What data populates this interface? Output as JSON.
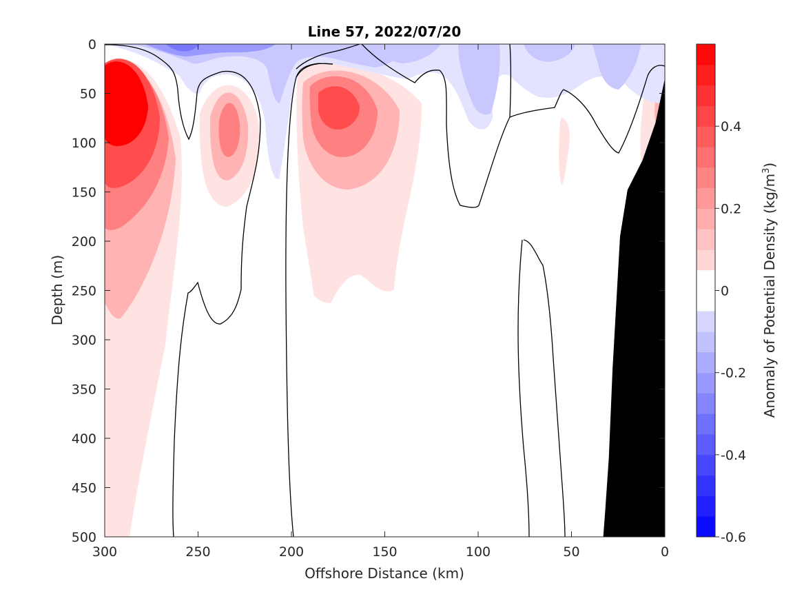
{
  "chart_data": {
    "type": "contour",
    "title": "Line 57, 2022/07/20",
    "xlabel": "Offshore Distance (km)",
    "ylabel": "Depth (m)",
    "colorbar_label": "Anomaly of Potential Density (kg/m",
    "colorbar_label_sup": "3",
    "colorbar_label_end": ")",
    "xlim": [
      300,
      0
    ],
    "ylim": [
      0,
      500
    ],
    "x_reversed": true,
    "y_reversed": true,
    "x_ticks": [
      "300",
      "250",
      "200",
      "150",
      "100",
      "50",
      "0"
    ],
    "y_ticks": [
      "0",
      "50",
      "100",
      "150",
      "200",
      "250",
      "300",
      "350",
      "400",
      "450",
      "500"
    ],
    "clim": [
      -0.6,
      0.6
    ],
    "colorbar_ticks": [
      "0.4",
      "0.2",
      "0",
      "-0.2",
      "-0.4",
      "-0.6"
    ],
    "colorbar_tick_values": [
      0.4,
      0.2,
      0,
      -0.2,
      -0.4,
      -0.6
    ],
    "level_step": 0.05,
    "colormap": {
      "negative": "#0000ff",
      "zero": "#ffffff",
      "positive": "#ff0000"
    },
    "zero_contour_color": "#000000",
    "bathymetry_color": "#000000",
    "grid": false,
    "anomaly_features": [
      {
        "name": "offshore dense core",
        "sign": "positive",
        "x_center": 288,
        "y_center": 70,
        "peak": 0.6
      },
      {
        "name": "subsurface dense core",
        "sign": "positive",
        "x_center": 233,
        "y_center": 75,
        "peak": 0.25
      },
      {
        "name": "mid-section dense core",
        "sign": "positive",
        "x_center": 178,
        "y_center": 55,
        "peak": 0.35
      },
      {
        "name": "surface light layer",
        "sign": "negative",
        "x_center": 258,
        "y_center": 5,
        "peak": -0.25
      },
      {
        "name": "surface light patch",
        "sign": "negative",
        "x_center": 80,
        "y_center": 30,
        "peak": -0.15
      },
      {
        "name": "surface light patch",
        "sign": "negative",
        "x_center": 35,
        "y_center": 35,
        "peak": -0.15
      }
    ],
    "bathymetry": [
      {
        "x": 0,
        "depth": 35
      },
      {
        "x": 5,
        "depth": 80
      },
      {
        "x": 12,
        "depth": 118
      },
      {
        "x": 20,
        "depth": 148
      },
      {
        "x": 24,
        "depth": 195
      },
      {
        "x": 28,
        "depth": 330
      },
      {
        "x": 30,
        "depth": 420
      },
      {
        "x": 32,
        "depth": 475
      },
      {
        "x": 33,
        "depth": 500
      }
    ]
  }
}
